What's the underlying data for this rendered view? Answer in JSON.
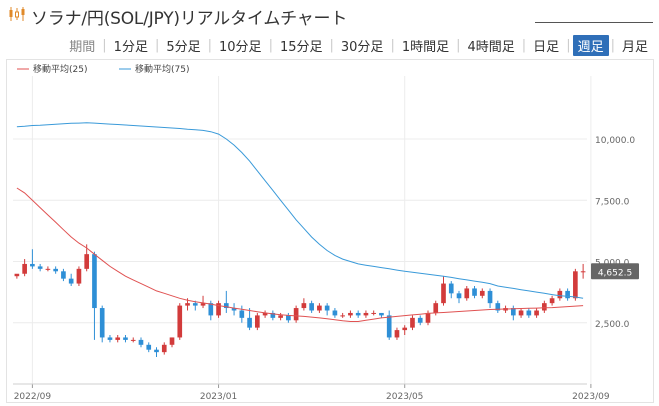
{
  "title": "ソラナ/円(SOL/JPY)リアルタイムチャート",
  "periods": {
    "label": "期間",
    "items": [
      "1分足",
      "5分足",
      "10分足",
      "15分足",
      "30分足",
      "1時間足",
      "4時間足",
      "日足",
      "週足",
      "月足"
    ],
    "active_index": 8
  },
  "colors": {
    "up": "#d23b3b",
    "down": "#2e8fd6",
    "ma25": "#e05252",
    "ma75": "#3a9ad9",
    "price_tag": "#666666"
  },
  "chart_data": {
    "type": "candlestick",
    "title": "",
    "legend": [
      "移動平均(25)",
      "移動平均(75)"
    ],
    "legend_position": "top-left",
    "y_ticks": [
      "2,500.0",
      "5,000.0",
      "7,500.0",
      "10,000.0"
    ],
    "y_tick_values": [
      2500,
      5000,
      7500,
      10000
    ],
    "ylim": [
      0,
      12000
    ],
    "x_ticks": [
      "2022/09",
      "2023/01",
      "2023/05",
      "2023/09"
    ],
    "x_tick_indices": [
      2,
      26,
      50,
      74
    ],
    "current_price": "4,652.5",
    "grid": true,
    "candles": [
      [
        4400,
        4500,
        4300,
        4450
      ],
      [
        4500,
        4900,
        4400,
        5100
      ],
      [
        4900,
        4800,
        4700,
        5500
      ],
      [
        4800,
        4700,
        4600,
        4900
      ],
      [
        4700,
        4700,
        4600,
        4800
      ],
      [
        4700,
        4600,
        4500,
        4800
      ],
      [
        4600,
        4300,
        4200,
        4700
      ],
      [
        4300,
        4100,
        4000,
        4500
      ],
      [
        4100,
        4700,
        4000,
        4800
      ],
      [
        4700,
        5300,
        4600,
        5700
      ],
      [
        5300,
        3100,
        1800,
        5400
      ],
      [
        3100,
        1900,
        1700,
        3200
      ],
      [
        1900,
        1800,
        1700,
        2000
      ],
      [
        1800,
        1900,
        1700,
        2000
      ],
      [
        1900,
        1800,
        1700,
        2000
      ],
      [
        1800,
        1800,
        1700,
        1900
      ],
      [
        1800,
        1600,
        1500,
        1900
      ],
      [
        1600,
        1400,
        1300,
        1700
      ],
      [
        1400,
        1300,
        1100,
        1500
      ],
      [
        1300,
        1600,
        1200,
        1700
      ],
      [
        1600,
        1900,
        1500,
        1900
      ],
      [
        1900,
        3200,
        1800,
        3300
      ],
      [
        3200,
        3300,
        3000,
        3500
      ],
      [
        3300,
        3200,
        3000,
        3400
      ],
      [
        3200,
        3300,
        3100,
        3600
      ],
      [
        3300,
        2800,
        2600,
        3400
      ],
      [
        2800,
        3300,
        2700,
        3400
      ],
      [
        3300,
        3100,
        2900,
        3800
      ],
      [
        3100,
        3000,
        2800,
        3300
      ],
      [
        3000,
        2700,
        2500,
        3200
      ],
      [
        2700,
        2300,
        2200,
        3100
      ],
      [
        2300,
        2800,
        2200,
        2900
      ],
      [
        2800,
        2900,
        2700,
        3000
      ],
      [
        2900,
        2700,
        2600,
        3000
      ],
      [
        2700,
        2800,
        2600,
        2900
      ],
      [
        2800,
        2600,
        2500,
        2900
      ],
      [
        2600,
        3100,
        2500,
        3200
      ],
      [
        3100,
        3300,
        3000,
        3500
      ],
      [
        3300,
        3000,
        2900,
        3400
      ],
      [
        3000,
        3200,
        2900,
        3300
      ],
      [
        3200,
        3000,
        2800,
        3300
      ],
      [
        3000,
        2800,
        2700,
        3100
      ],
      [
        2800,
        2800,
        2700,
        2900
      ],
      [
        2800,
        2900,
        2700,
        3000
      ],
      [
        2900,
        2800,
        2700,
        3000
      ],
      [
        2800,
        2900,
        2700,
        3000
      ],
      [
        2900,
        2900,
        2800,
        3000
      ],
      [
        2900,
        2800,
        2700,
        2900
      ],
      [
        2800,
        1900,
        1800,
        3000
      ],
      [
        1900,
        2200,
        1800,
        2300
      ],
      [
        2200,
        2300,
        2000,
        2400
      ],
      [
        2300,
        2700,
        2200,
        2800
      ],
      [
        2700,
        2500,
        2400,
        2800
      ],
      [
        2500,
        2900,
        2400,
        3000
      ],
      [
        2900,
        3300,
        2800,
        3400
      ],
      [
        3300,
        4100,
        3200,
        4400
      ],
      [
        4100,
        3700,
        3500,
        4200
      ],
      [
        3700,
        3500,
        3300,
        3800
      ],
      [
        3500,
        3900,
        3400,
        4000
      ],
      [
        3900,
        3600,
        3500,
        4000
      ],
      [
        3600,
        3800,
        3500,
        3900
      ],
      [
        3800,
        3300,
        3100,
        3900
      ],
      [
        3300,
        3000,
        2900,
        3400
      ],
      [
        3000,
        3100,
        2900,
        3200
      ],
      [
        3100,
        2800,
        2600,
        3200
      ],
      [
        2800,
        3000,
        2700,
        3100
      ],
      [
        3000,
        2800,
        2700,
        3100
      ],
      [
        2800,
        3000,
        2700,
        3100
      ],
      [
        3000,
        3300,
        2900,
        3400
      ],
      [
        3300,
        3500,
        3200,
        3600
      ],
      [
        3500,
        3800,
        3400,
        3900
      ],
      [
        3800,
        3500,
        3400,
        3900
      ],
      [
        3500,
        4600,
        3400,
        4700
      ],
      [
        4600,
        4600,
        4300,
        4900
      ]
    ],
    "ma25": [
      8000,
      7800,
      7500,
      7200,
      6900,
      6600,
      6300,
      6000,
      5750,
      5550,
      5300,
      5050,
      4800,
      4600,
      4400,
      4250,
      4100,
      3950,
      3800,
      3700,
      3600,
      3500,
      3420,
      3360,
      3310,
      3260,
      3200,
      3150,
      3100,
      3050,
      3000,
      2950,
      2900,
      2860,
      2830,
      2800,
      2780,
      2760,
      2730,
      2700,
      2660,
      2620,
      2580,
      2550,
      2550,
      2600,
      2650,
      2700,
      2730,
      2760,
      2790,
      2820,
      2850,
      2880,
      2900,
      2920,
      2940,
      2960,
      2980,
      3000,
      3020,
      3040,
      3050,
      3060,
      3070,
      3080,
      3090,
      3100,
      3110,
      3120,
      3140,
      3160,
      3180,
      3200
    ],
    "ma75": [
      10500,
      10520,
      10550,
      10560,
      10580,
      10600,
      10620,
      10640,
      10650,
      10660,
      10650,
      10630,
      10610,
      10590,
      10570,
      10550,
      10530,
      10510,
      10490,
      10470,
      10450,
      10430,
      10400,
      10380,
      10350,
      10300,
      10200,
      10000,
      9750,
      9450,
      9100,
      8700,
      8300,
      7900,
      7500,
      7100,
      6700,
      6350,
      6000,
      5700,
      5450,
      5250,
      5100,
      5000,
      4900,
      4850,
      4800,
      4750,
      4700,
      4650,
      4600,
      4560,
      4520,
      4480,
      4440,
      4400,
      4350,
      4300,
      4250,
      4200,
      4150,
      4100,
      4000,
      3950,
      3900,
      3850,
      3800,
      3750,
      3700,
      3650,
      3600,
      3580,
      3550,
      3500
    ]
  }
}
